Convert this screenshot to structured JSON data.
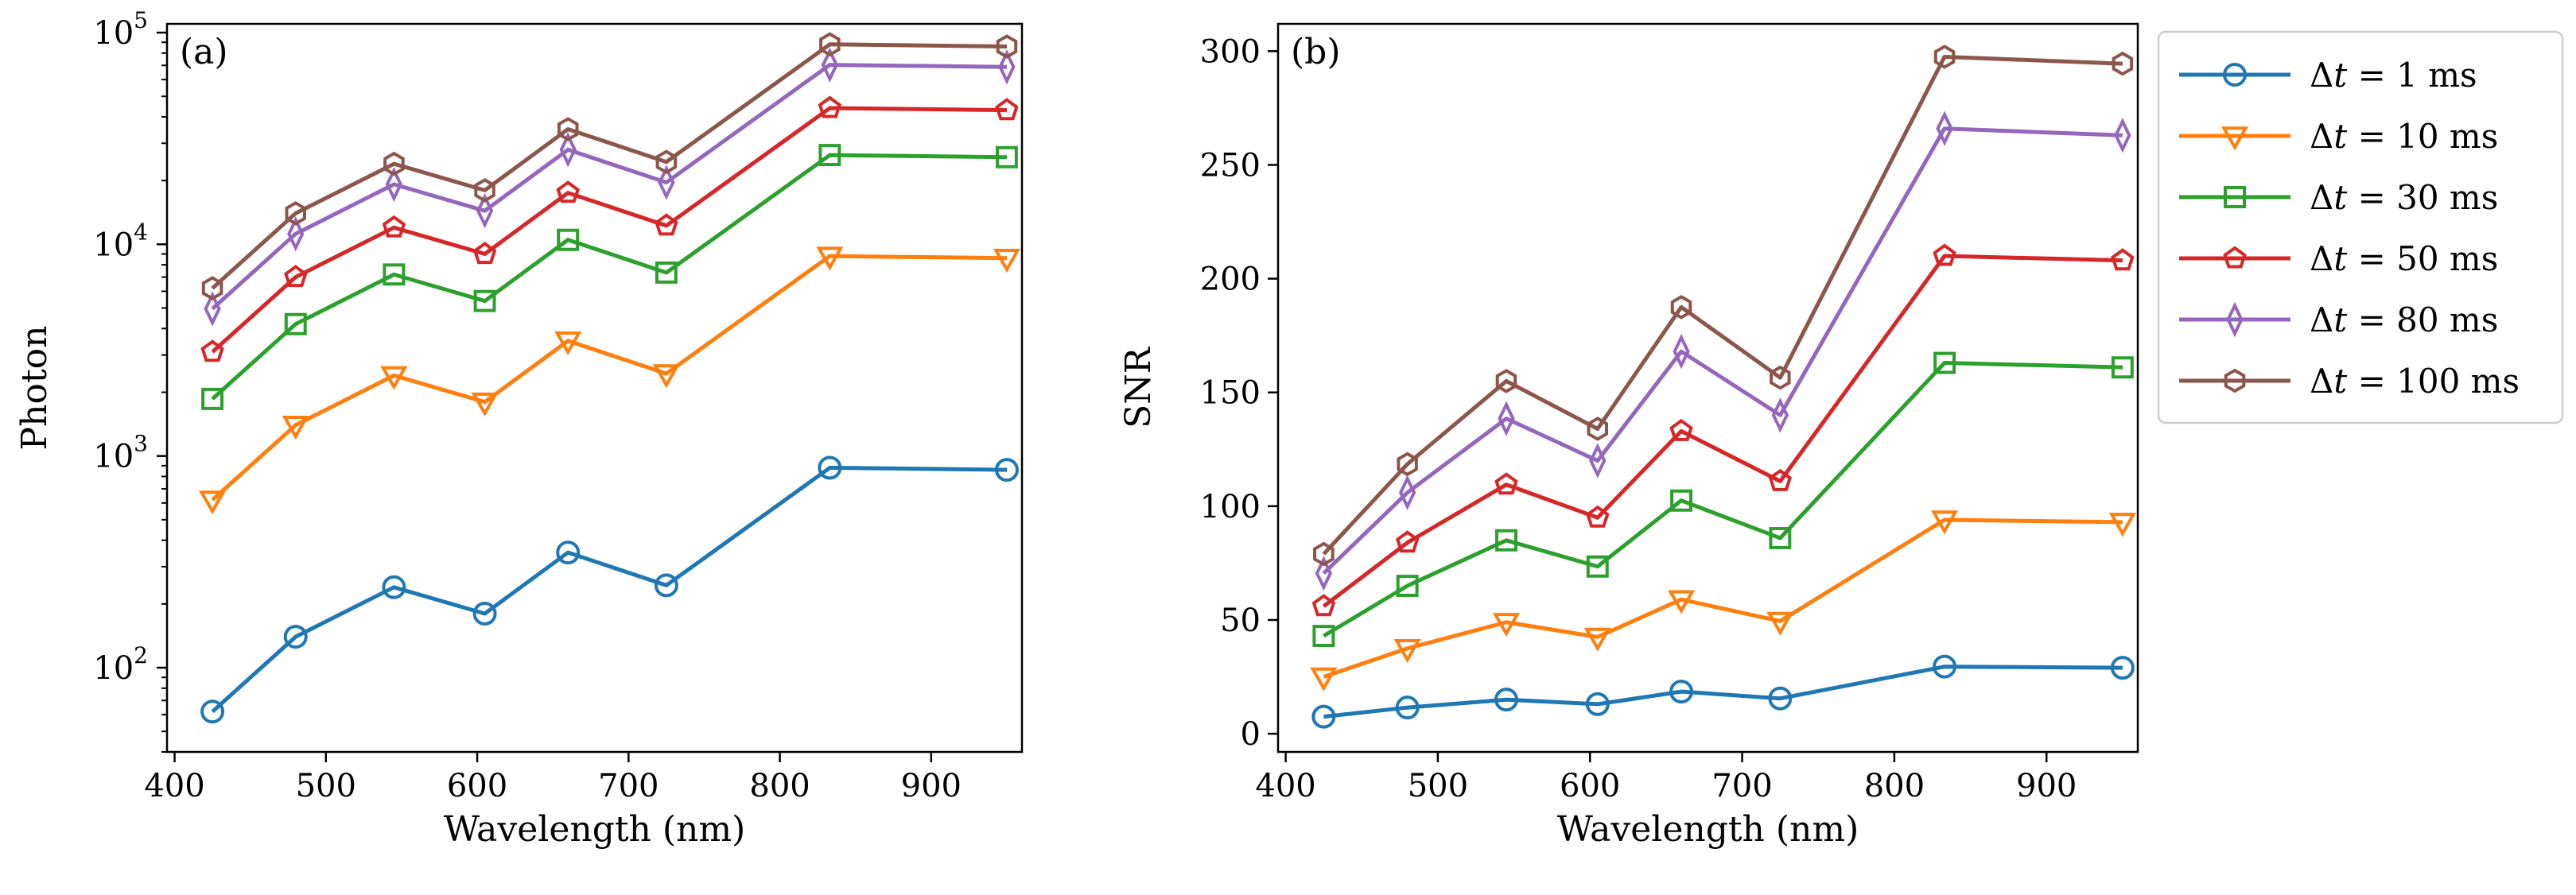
{
  "chart_data": [
    {
      "type": "line",
      "panel_label": "(a)",
      "xlabel": "Wavelength (nm)",
      "ylabel": "Photon",
      "yscale": "log",
      "xlim": [
        395,
        960
      ],
      "ylim": [
        40,
        110000
      ],
      "xticks": [
        400,
        500,
        600,
        700,
        800,
        900
      ],
      "xtick_labels": [
        "400",
        "500",
        "600",
        "700",
        "800",
        "900"
      ],
      "yticks": [
        100,
        1000,
        10000,
        100000
      ],
      "ytick_labels": [
        {
          "base": "10",
          "exp": "2"
        },
        {
          "base": "10",
          "exp": "3"
        },
        {
          "base": "10",
          "exp": "4"
        },
        {
          "base": "10",
          "exp": "5"
        }
      ],
      "x": [
        425,
        480,
        545,
        605,
        660,
        725,
        833,
        950
      ],
      "series": [
        {
          "name": "Δt = 1 ms",
          "values": [
            62,
            140,
            240,
            180,
            350,
            245,
            880,
            860
          ]
        },
        {
          "name": "Δt = 10 ms",
          "values": [
            620,
            1400,
            2400,
            1800,
            3500,
            2450,
            8800,
            8600
          ]
        },
        {
          "name": "Δt = 30 ms",
          "values": [
            1860,
            4200,
            7200,
            5400,
            10500,
            7350,
            26400,
            25800
          ]
        },
        {
          "name": "Δt = 50 ms",
          "values": [
            3100,
            7000,
            12000,
            9000,
            17500,
            12250,
            44000,
            43000
          ]
        },
        {
          "name": "Δt = 80 ms",
          "values": [
            4960,
            11200,
            19200,
            14400,
            28000,
            19600,
            70400,
            68800
          ]
        },
        {
          "name": "Δt = 100 ms",
          "values": [
            6200,
            14000,
            24000,
            18000,
            35000,
            24500,
            88000,
            86000
          ]
        }
      ]
    },
    {
      "type": "line",
      "panel_label": "(b)",
      "xlabel": "Wavelength (nm)",
      "ylabel": "SNR",
      "yscale": "linear",
      "xlim": [
        395,
        960
      ],
      "ylim": [
        -8,
        312
      ],
      "xticks": [
        400,
        500,
        600,
        700,
        800,
        900
      ],
      "xtick_labels": [
        "400",
        "500",
        "600",
        "700",
        "800",
        "900"
      ],
      "yticks": [
        0,
        50,
        100,
        150,
        200,
        250,
        300
      ],
      "ytick_labels": [
        "0",
        "50",
        "100",
        "150",
        "200",
        "250",
        "300"
      ],
      "x": [
        425,
        480,
        545,
        605,
        660,
        725,
        833,
        950
      ],
      "series": [
        {
          "name": "Δt = 1 ms",
          "values": [
            7.5,
            11.5,
            15,
            13,
            18.5,
            15.5,
            29.5,
            29
          ]
        },
        {
          "name": "Δt = 10 ms",
          "values": [
            25,
            37.5,
            49,
            42.5,
            59,
            49.5,
            94,
            93
          ]
        },
        {
          "name": "Δt = 30 ms",
          "values": [
            43,
            65,
            85,
            73.5,
            102.5,
            86,
            163,
            161
          ]
        },
        {
          "name": "Δt = 50 ms",
          "values": [
            56,
            84,
            109.5,
            95,
            133,
            111,
            210,
            208
          ]
        },
        {
          "name": "Δt = 80 ms",
          "values": [
            70.5,
            106,
            138.5,
            120,
            168,
            140,
            266,
            263
          ]
        },
        {
          "name": "Δt = 100 ms",
          "values": [
            79,
            118.5,
            155,
            134,
            187.5,
            156.5,
            297.5,
            294.5
          ]
        }
      ]
    }
  ],
  "legend": {
    "placement": "right of panel (b)",
    "entries": [
      {
        "prefix": "Δ",
        "var": "t",
        "suffix": " = 1 ms",
        "color": "#1f77b4",
        "marker": "circle"
      },
      {
        "prefix": "Δ",
        "var": "t",
        "suffix": " = 10 ms",
        "color": "#ff7f0e",
        "marker": "triangle-down"
      },
      {
        "prefix": "Δ",
        "var": "t",
        "suffix": " = 30 ms",
        "color": "#2ca02c",
        "marker": "square"
      },
      {
        "prefix": "Δ",
        "var": "t",
        "suffix": " = 50 ms",
        "color": "#d62728",
        "marker": "pentagon"
      },
      {
        "prefix": "Δ",
        "var": "t",
        "suffix": " = 80 ms",
        "color": "#9467bd",
        "marker": "thin-diamond"
      },
      {
        "prefix": "Δ",
        "var": "t",
        "suffix": " = 100 ms",
        "color": "#8c564b",
        "marker": "hexagon"
      }
    ]
  }
}
